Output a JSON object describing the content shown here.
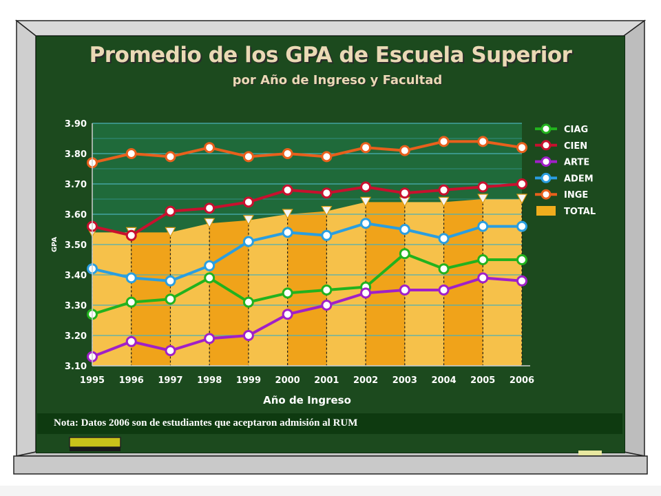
{
  "title": "Promedio de los GPA de Escuela Superior",
  "subtitle": "por Año de Ingreso y Facultad",
  "note": "Nota:  Datos 2006 son de estudiantes que aceptaron admisión al RUM",
  "chart_data": {
    "type": "line",
    "title": "Promedio de los GPA de Escuela Superior",
    "subtitle": "por Año de Ingreso y Facultad",
    "xlabel": "Año de Ingreso",
    "ylabel": "GPA",
    "ylim": [
      3.1,
      3.9
    ],
    "yticks": [
      "3.10",
      "3.20",
      "3.30",
      "3.40",
      "3.50",
      "3.60",
      "3.70",
      "3.80",
      "3.90"
    ],
    "categories": [
      "1995",
      "1996",
      "1997",
      "1998",
      "1999",
      "2000",
      "2001",
      "2002",
      "2003",
      "2004",
      "2005",
      "2006"
    ],
    "legend_position": "right",
    "series": [
      {
        "name": "CIAG",
        "color": "#22b21e",
        "values": [
          3.27,
          3.31,
          3.32,
          3.39,
          3.31,
          3.34,
          3.35,
          3.36,
          3.47,
          3.42,
          3.45,
          3.45
        ]
      },
      {
        "name": "CIEN",
        "color": "#c8102e",
        "values": [
          3.56,
          3.53,
          3.61,
          3.62,
          3.64,
          3.68,
          3.67,
          3.69,
          3.67,
          3.68,
          3.69,
          3.7
        ]
      },
      {
        "name": "ARTE",
        "color": "#a020c8",
        "values": [
          3.13,
          3.18,
          3.15,
          3.19,
          3.2,
          3.27,
          3.3,
          3.34,
          3.35,
          3.35,
          3.39,
          3.38
        ]
      },
      {
        "name": "ADEM",
        "color": "#2a9ee0",
        "values": [
          3.42,
          3.39,
          3.38,
          3.43,
          3.51,
          3.54,
          3.53,
          3.57,
          3.55,
          3.52,
          3.56,
          3.56
        ]
      },
      {
        "name": "INGE",
        "color": "#e8601c",
        "values": [
          3.77,
          3.8,
          3.79,
          3.82,
          3.79,
          3.8,
          3.79,
          3.82,
          3.81,
          3.84,
          3.84,
          3.82
        ]
      },
      {
        "name": "TOTAL",
        "color": "#f0ad1e",
        "type": "area",
        "values": [
          3.54,
          3.54,
          3.54,
          3.57,
          3.58,
          3.6,
          3.61,
          3.64,
          3.64,
          3.64,
          3.65,
          3.65
        ]
      }
    ]
  }
}
